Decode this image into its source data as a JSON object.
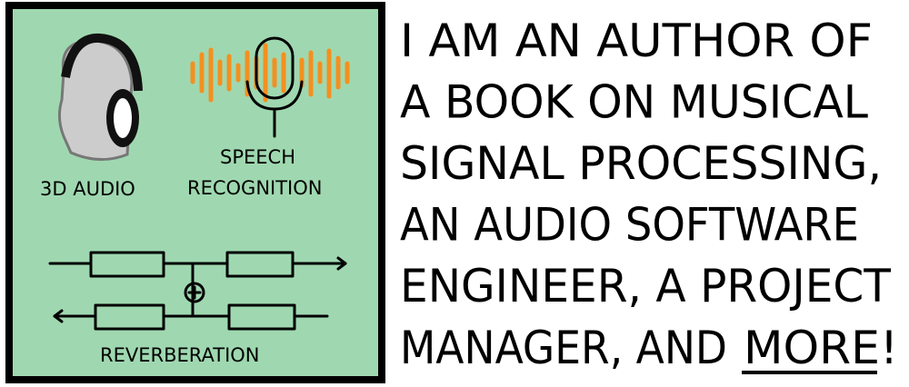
{
  "panel": {
    "labels": {
      "audio3d": "3D AUDIO",
      "speech": "SPEECH",
      "recognition": "RECOGNITION",
      "reverb": "REVERBERATION"
    }
  },
  "text": {
    "lines": [
      "I AM AN AUTHOR OF",
      "A BOOK ON MUSICAL",
      "SIGNAL PROCESSING,",
      "AN AUDIO SOFTWARE",
      "ENGINEER, A PROJECT"
    ],
    "last": {
      "lead": "MANAGER, AND",
      "emphasis": "MORE",
      "end": "!"
    }
  }
}
